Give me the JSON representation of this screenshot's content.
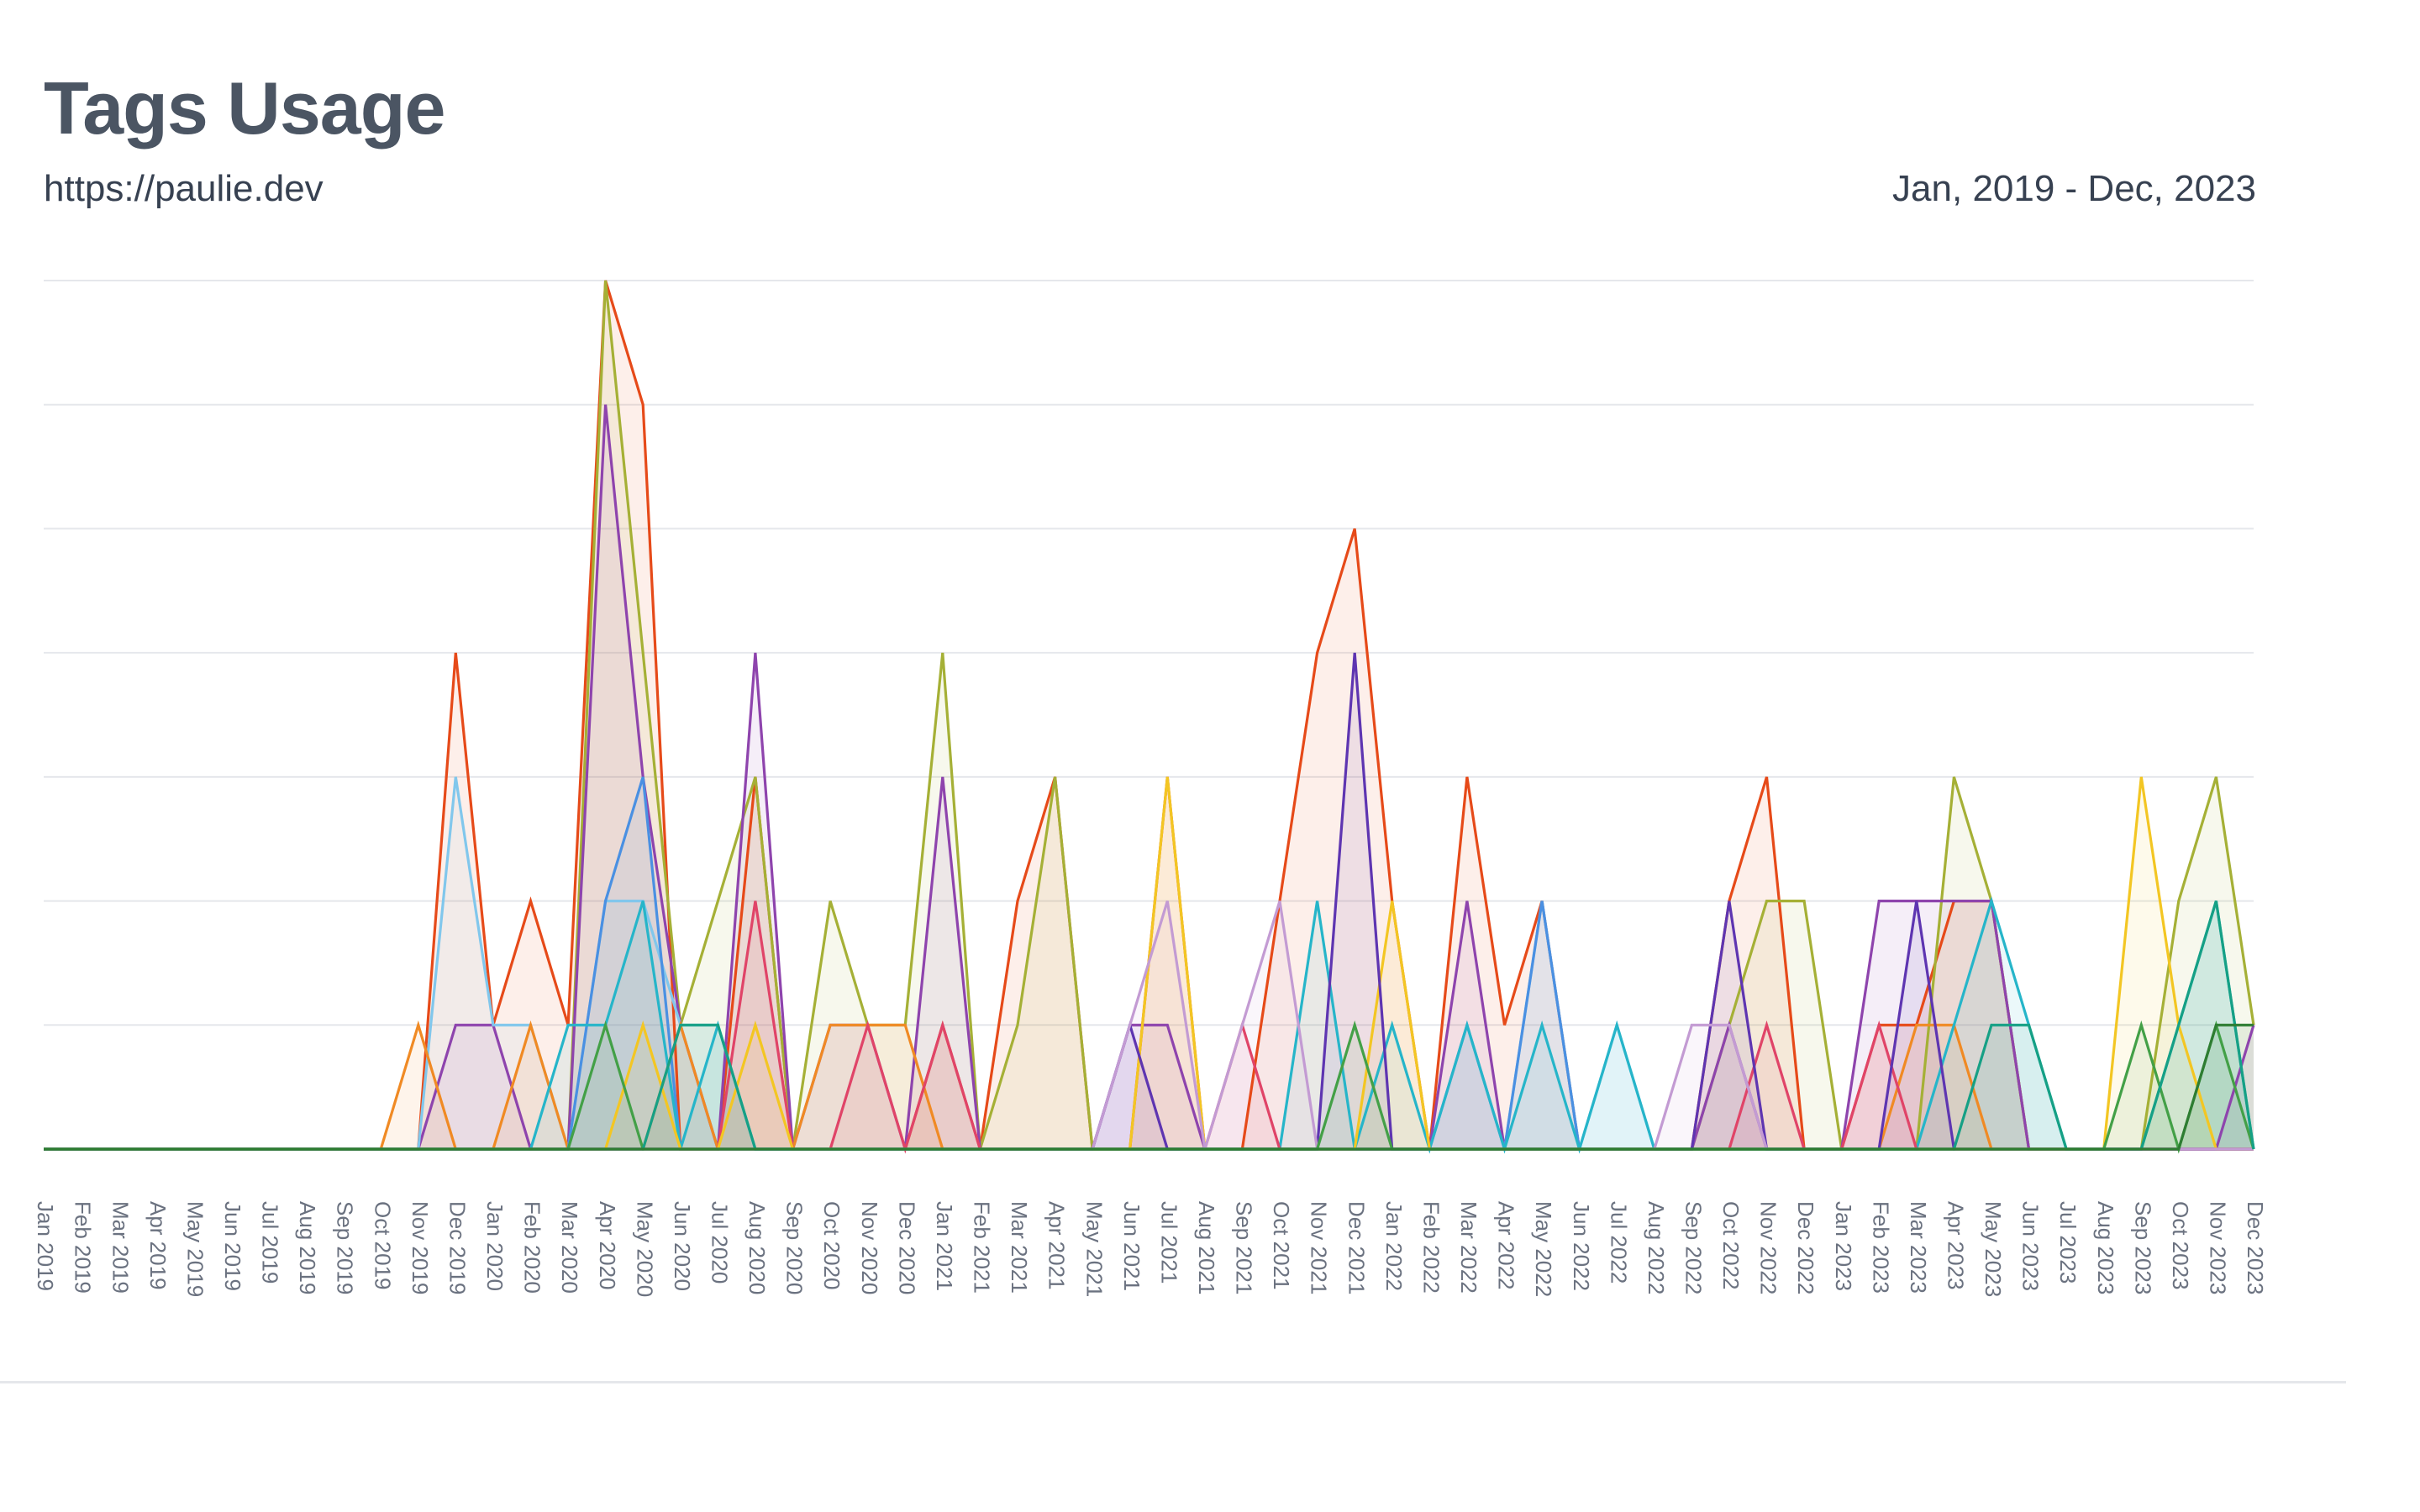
{
  "header": {
    "title": "Tags Usage",
    "site": "https://paulie.dev",
    "range": "Jan, 2019 - Dec, 2023"
  },
  "chart_data": {
    "type": "area",
    "title": "Tags Usage",
    "xlabel": "",
    "ylabel": "",
    "ylim": [
      0,
      7
    ],
    "grid": true,
    "legend": "none",
    "categories": [
      "Jan 2019",
      "Feb 2019",
      "Mar 2019",
      "Apr 2019",
      "May 2019",
      "Jun 2019",
      "Jul 2019",
      "Aug 2019",
      "Sep 2019",
      "Oct 2019",
      "Nov 2019",
      "Dec 2019",
      "Jan 2020",
      "Feb 2020",
      "Mar 2020",
      "Apr 2020",
      "May 2020",
      "Jun 2020",
      "Jul 2020",
      "Aug 2020",
      "Sep 2020",
      "Oct 2020",
      "Nov 2020",
      "Dec 2020",
      "Jan 2021",
      "Feb 2021",
      "Mar 2021",
      "Apr 2021",
      "May 2021",
      "Jun 2021",
      "Jul 2021",
      "Aug 2021",
      "Sep 2021",
      "Oct 2021",
      "Nov 2021",
      "Dec 2021",
      "Jan 2022",
      "Feb 2022",
      "Mar 2022",
      "Apr 2022",
      "May 2022",
      "Jun 2022",
      "Jul 2022",
      "Aug 2022",
      "Sep 2022",
      "Oct 2022",
      "Nov 2022",
      "Dec 2022",
      "Jan 2023",
      "Feb 2023",
      "Mar 2023",
      "Apr 2023",
      "May 2023",
      "Jun 2023",
      "Jul 2023",
      "Aug 2023",
      "Sep 2023",
      "Oct 2023",
      "Nov 2023",
      "Dec 2023"
    ],
    "series": [
      {
        "color": "#e64a19",
        "values": [
          0,
          0,
          0,
          0,
          0,
          0,
          0,
          0,
          0,
          0,
          0,
          4,
          1,
          2,
          1,
          7,
          6,
          0,
          0,
          3,
          0,
          0,
          0,
          0,
          1,
          0,
          2,
          3,
          0,
          0,
          3,
          0,
          0,
          2,
          4,
          5,
          2,
          0,
          3,
          1,
          2,
          0,
          0,
          0,
          0,
          2,
          3,
          0,
          0,
          1,
          1,
          2,
          2,
          0,
          0,
          0,
          0,
          0,
          0,
          0
        ]
      },
      {
        "color": "#a5b036",
        "values": [
          0,
          0,
          0,
          0,
          0,
          0,
          0,
          0,
          0,
          0,
          0,
          0,
          0,
          0,
          0,
          7,
          4,
          1,
          2,
          3,
          0,
          2,
          1,
          1,
          4,
          0,
          1,
          3,
          0,
          0,
          0,
          0,
          0,
          0,
          0,
          0,
          0,
          0,
          0,
          0,
          0,
          0,
          0,
          0,
          0,
          1,
          2,
          2,
          0,
          0,
          0,
          3,
          2,
          0,
          0,
          0,
          0,
          2,
          3,
          1
        ]
      },
      {
        "color": "#8e44ad",
        "values": [
          0,
          0,
          0,
          0,
          0,
          0,
          0,
          0,
          0,
          0,
          0,
          1,
          1,
          0,
          0,
          6,
          3,
          1,
          0,
          4,
          0,
          1,
          1,
          0,
          3,
          0,
          0,
          0,
          0,
          1,
          1,
          0,
          0,
          0,
          0,
          0,
          0,
          0,
          2,
          0,
          0,
          0,
          0,
          0,
          0,
          1,
          0,
          0,
          0,
          2,
          2,
          2,
          2,
          0,
          0,
          0,
          0,
          0,
          0,
          1
        ]
      },
      {
        "color": "#81c7ec",
        "values": [
          0,
          0,
          0,
          0,
          0,
          0,
          0,
          0,
          0,
          0,
          0,
          3,
          1,
          1,
          0,
          2,
          2,
          1,
          1,
          0,
          0,
          0,
          0,
          0,
          0,
          0,
          0,
          0,
          0,
          0,
          0,
          0,
          0,
          0,
          0,
          0,
          0,
          0,
          0,
          0,
          2,
          0,
          1,
          0,
          0,
          0,
          0,
          0,
          0,
          0,
          0,
          0,
          0,
          0,
          0,
          0,
          0,
          0,
          0,
          0
        ]
      },
      {
        "color": "#f08a24",
        "values": [
          0,
          0,
          0,
          0,
          0,
          0,
          0,
          0,
          0,
          0,
          1,
          0,
          0,
          1,
          0,
          0,
          0,
          1,
          0,
          0,
          0,
          1,
          1,
          1,
          0,
          0,
          0,
          0,
          0,
          0,
          0,
          0,
          0,
          0,
          0,
          0,
          0,
          0,
          0,
          0,
          0,
          0,
          0,
          0,
          0,
          0,
          0,
          0,
          0,
          0,
          1,
          1,
          0,
          0,
          0,
          0,
          0,
          0,
          0,
          0
        ]
      },
      {
        "color": "#4a90e2",
        "values": [
          0,
          0,
          0,
          0,
          0,
          0,
          0,
          0,
          0,
          0,
          0,
          0,
          0,
          0,
          0,
          2,
          3,
          0,
          0,
          0,
          0,
          0,
          0,
          0,
          0,
          0,
          0,
          0,
          0,
          0,
          0,
          0,
          0,
          0,
          0,
          0,
          0,
          0,
          1,
          0,
          2,
          0,
          0,
          0,
          0,
          0,
          0,
          0,
          0,
          0,
          0,
          0,
          0,
          0,
          0,
          0,
          0,
          0,
          0,
          0
        ]
      },
      {
        "color": "#26b5c9",
        "values": [
          0,
          0,
          0,
          0,
          0,
          0,
          0,
          0,
          0,
          0,
          0,
          0,
          0,
          0,
          1,
          1,
          2,
          0,
          1,
          0,
          0,
          0,
          0,
          0,
          0,
          0,
          0,
          0,
          0,
          0,
          0,
          0,
          0,
          0,
          2,
          0,
          1,
          0,
          1,
          0,
          1,
          0,
          1,
          0,
          0,
          0,
          0,
          0,
          0,
          0,
          0,
          1,
          2,
          1,
          0,
          0,
          0,
          1,
          2,
          0
        ]
      },
      {
        "color": "#e04468",
        "values": [
          0,
          0,
          0,
          0,
          0,
          0,
          0,
          0,
          0,
          0,
          0,
          0,
          0,
          0,
          0,
          0,
          0,
          0,
          0,
          2,
          0,
          0,
          1,
          0,
          1,
          0,
          0,
          0,
          0,
          0,
          0,
          0,
          1,
          0,
          0,
          0,
          0,
          0,
          0,
          0,
          0,
          0,
          0,
          0,
          0,
          0,
          1,
          0,
          0,
          1,
          0,
          0,
          0,
          0,
          0,
          0,
          0,
          0,
          0,
          0
        ]
      },
      {
        "color": "#f3c623",
        "values": [
          0,
          0,
          0,
          0,
          0,
          0,
          0,
          0,
          0,
          0,
          0,
          0,
          0,
          0,
          0,
          0,
          1,
          0,
          0,
          1,
          0,
          0,
          0,
          0,
          0,
          0,
          0,
          0,
          0,
          0,
          3,
          0,
          0,
          0,
          0,
          0,
          2,
          0,
          0,
          0,
          0,
          0,
          0,
          0,
          0,
          0,
          0,
          0,
          0,
          0,
          0,
          0,
          0,
          0,
          0,
          0,
          3,
          1,
          0,
          0
        ]
      },
      {
        "color": "#5e35b1",
        "values": [
          0,
          0,
          0,
          0,
          0,
          0,
          0,
          0,
          0,
          0,
          0,
          0,
          0,
          0,
          0,
          0,
          0,
          0,
          0,
          0,
          0,
          0,
          0,
          0,
          0,
          0,
          0,
          0,
          0,
          1,
          0,
          0,
          0,
          0,
          0,
          4,
          0,
          0,
          0,
          0,
          0,
          0,
          0,
          0,
          0,
          2,
          0,
          0,
          0,
          0,
          2,
          0,
          0,
          0,
          0,
          0,
          0,
          0,
          0,
          0
        ]
      },
      {
        "color": "#c39bd3",
        "values": [
          0,
          0,
          0,
          0,
          0,
          0,
          0,
          0,
          0,
          0,
          0,
          0,
          0,
          0,
          0,
          0,
          0,
          0,
          0,
          0,
          0,
          0,
          0,
          0,
          0,
          0,
          0,
          0,
          0,
          1,
          2,
          0,
          1,
          2,
          0,
          0,
          0,
          0,
          0,
          0,
          0,
          0,
          0,
          0,
          1,
          1,
          0,
          0,
          0,
          0,
          0,
          0,
          0,
          0,
          0,
          0,
          0,
          0,
          0,
          0
        ]
      },
      {
        "color": "#43a047",
        "values": [
          0,
          0,
          0,
          0,
          0,
          0,
          0,
          0,
          0,
          0,
          0,
          0,
          0,
          0,
          0,
          1,
          0,
          0,
          0,
          0,
          0,
          0,
          0,
          0,
          0,
          0,
          0,
          0,
          0,
          0,
          0,
          0,
          0,
          0,
          0,
          1,
          0,
          0,
          0,
          0,
          0,
          0,
          0,
          0,
          0,
          0,
          0,
          0,
          0,
          0,
          0,
          0,
          0,
          0,
          0,
          0,
          1,
          0,
          1,
          0
        ]
      },
      {
        "color": "#16a085",
        "values": [
          0,
          0,
          0,
          0,
          0,
          0,
          0,
          0,
          0,
          0,
          0,
          0,
          0,
          0,
          0,
          0,
          0,
          1,
          1,
          0,
          0,
          0,
          0,
          0,
          0,
          0,
          0,
          0,
          0,
          0,
          0,
          0,
          0,
          0,
          0,
          0,
          0,
          0,
          0,
          0,
          0,
          0,
          0,
          0,
          0,
          0,
          0,
          0,
          0,
          0,
          0,
          0,
          1,
          1,
          0,
          0,
          0,
          1,
          2,
          0
        ]
      },
      {
        "color": "#2e7d32",
        "values": [
          0,
          0,
          0,
          0,
          0,
          0,
          0,
          0,
          0,
          0,
          0,
          0,
          0,
          0,
          0,
          0,
          0,
          0,
          0,
          0,
          0,
          0,
          0,
          0,
          0,
          0,
          0,
          0,
          0,
          0,
          0,
          0,
          0,
          0,
          0,
          0,
          0,
          0,
          0,
          0,
          0,
          0,
          0,
          0,
          0,
          0,
          0,
          0,
          0,
          0,
          0,
          0,
          0,
          0,
          0,
          0,
          0,
          0,
          1,
          1
        ]
      }
    ]
  }
}
